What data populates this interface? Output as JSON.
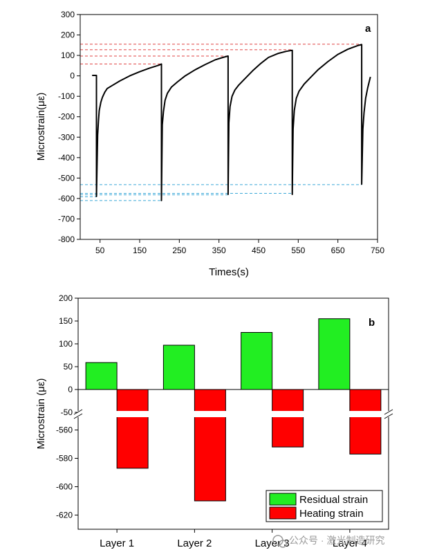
{
  "chart_data": [
    {
      "type": "line",
      "panel_label": "a",
      "xlabel": "Times(s)",
      "ylabel": "Microstrain(με)",
      "xlim": [
        0,
        750
      ],
      "ylim": [
        -800,
        300
      ],
      "x_ticks": [
        50,
        150,
        250,
        350,
        450,
        550,
        650,
        750
      ],
      "y_ticks": [
        300,
        200,
        100,
        0,
        -100,
        -200,
        -300,
        -400,
        -500,
        -600,
        -700,
        -800
      ],
      "series": [
        {
          "name": "strain",
          "color": "#000000",
          "points": [
            [
              30,
              2
            ],
            [
              41,
              2
            ],
            [
              41,
              -590
            ],
            [
              44,
              -290
            ],
            [
              46,
              -220
            ],
            [
              48,
              -170
            ],
            [
              52,
              -130
            ],
            [
              56,
              -105
            ],
            [
              62,
              -80
            ],
            [
              68,
              -62
            ],
            [
              80,
              -48
            ],
            [
              100,
              -25
            ],
            [
              125,
              0
            ],
            [
              150,
              20
            ],
            [
              175,
              38
            ],
            [
              198,
              52
            ],
            [
              205,
              58
            ],
            [
              205,
              -610
            ],
            [
              207,
              -240
            ],
            [
              210,
              -175
            ],
            [
              214,
              -120
            ],
            [
              220,
              -85
            ],
            [
              230,
              -55
            ],
            [
              245,
              -30
            ],
            [
              265,
              0
            ],
            [
              290,
              30
            ],
            [
              315,
              55
            ],
            [
              340,
              78
            ],
            [
              360,
              90
            ],
            [
              373,
              97
            ],
            [
              373,
              -580
            ],
            [
              375,
              -230
            ],
            [
              378,
              -150
            ],
            [
              383,
              -100
            ],
            [
              390,
              -70
            ],
            [
              400,
              -45
            ],
            [
              415,
              -15
            ],
            [
              435,
              25
            ],
            [
              455,
              60
            ],
            [
              475,
              90
            ],
            [
              500,
              110
            ],
            [
              520,
              120
            ],
            [
              535,
              125
            ],
            [
              535,
              -580
            ],
            [
              537,
              -260
            ],
            [
              540,
              -170
            ],
            [
              545,
              -110
            ],
            [
              552,
              -75
            ],
            [
              565,
              -40
            ],
            [
              580,
              -10
            ],
            [
              600,
              30
            ],
            [
              625,
              70
            ],
            [
              650,
              105
            ],
            [
              675,
              130
            ],
            [
              700,
              148
            ],
            [
              710,
              153
            ],
            [
              710,
              -530
            ],
            [
              713,
              -260
            ],
            [
              716,
              -180
            ],
            [
              720,
              -110
            ],
            [
              725,
              -60
            ],
            [
              732,
              -5
            ]
          ]
        }
      ],
      "reference_lines": [
        {
          "value": 155,
          "color": "#e04040",
          "x_start": 0,
          "x_end": 710
        },
        {
          "value": 128,
          "color": "#e04040",
          "x_start": 0,
          "x_end": 535
        },
        {
          "value": 97,
          "color": "#e04040",
          "x_start": 0,
          "x_end": 373
        },
        {
          "value": 58,
          "color": "#e04040",
          "x_start": 0,
          "x_end": 205
        },
        {
          "value": -532,
          "color": "#3aa8d8",
          "x_start": 0,
          "x_end": 710
        },
        {
          "value": -575,
          "color": "#3aa8d8",
          "x_start": 0,
          "x_end": 535
        },
        {
          "value": -582,
          "color": "#3aa8d8",
          "x_start": 0,
          "x_end": 373
        },
        {
          "value": -592,
          "color": "#3aa8d8",
          "x_start": 0,
          "x_end": 41
        },
        {
          "value": -610,
          "color": "#3aa8d8",
          "x_start": 0,
          "x_end": 205
        }
      ]
    },
    {
      "type": "bar",
      "panel_label": "b",
      "ylabel": "Microstrain (με)",
      "categories": [
        "Layer 1",
        "Layer 2",
        "Layer 3",
        "Layer 4"
      ],
      "y_axis_break": true,
      "ylim_upper": [
        -50,
        200
      ],
      "ylim_lower": [
        -630,
        -550
      ],
      "y_ticks_upper": [
        200,
        150,
        100,
        50,
        0,
        -50
      ],
      "y_ticks_lower": [
        -560,
        -580,
        -600,
        -620
      ],
      "series": [
        {
          "name": "Residual strain",
          "color": "#22ee22",
          "values": [
            59,
            97,
            125,
            155
          ]
        },
        {
          "name": "Heating strain",
          "color": "#ff0000",
          "values": [
            -587,
            -610,
            -572,
            -577
          ]
        }
      ],
      "legend": "bottom-right"
    }
  ],
  "watermark": "公众号 · 激光制造研究"
}
